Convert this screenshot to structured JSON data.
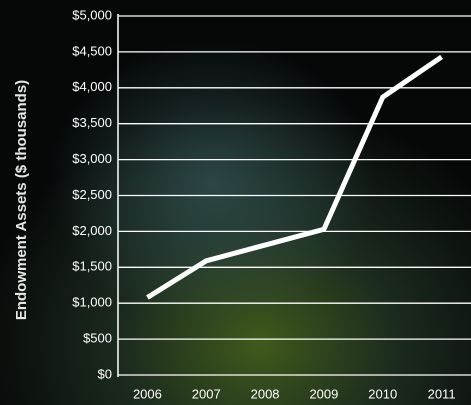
{
  "chart_data": {
    "type": "line",
    "y_label": "Endowment Assets ($ thousands)",
    "categories": [
      "2006",
      "2007",
      "2008",
      "2009",
      "2010",
      "2011"
    ],
    "values": [
      1080,
      1590,
      1810,
      2030,
      3870,
      4430
    ],
    "color": "#ffffff",
    "ylim": [
      0,
      5000
    ],
    "yticks": [
      {
        "value": 0,
        "label": "$0"
      },
      {
        "value": 500,
        "label": "$500"
      },
      {
        "value": 1000,
        "label": "$1,000"
      },
      {
        "value": 1500,
        "label": "$1,500"
      },
      {
        "value": 2000,
        "label": "$2,000"
      },
      {
        "value": 2500,
        "label": "$2,500"
      },
      {
        "value": 3000,
        "label": "$3,000"
      },
      {
        "value": 3500,
        "label": "$3,500"
      },
      {
        "value": 4000,
        "label": "$4,000"
      },
      {
        "value": 4500,
        "label": "$4,500"
      },
      {
        "value": 5000,
        "label": "$5,000"
      }
    ],
    "grid": true
  }
}
